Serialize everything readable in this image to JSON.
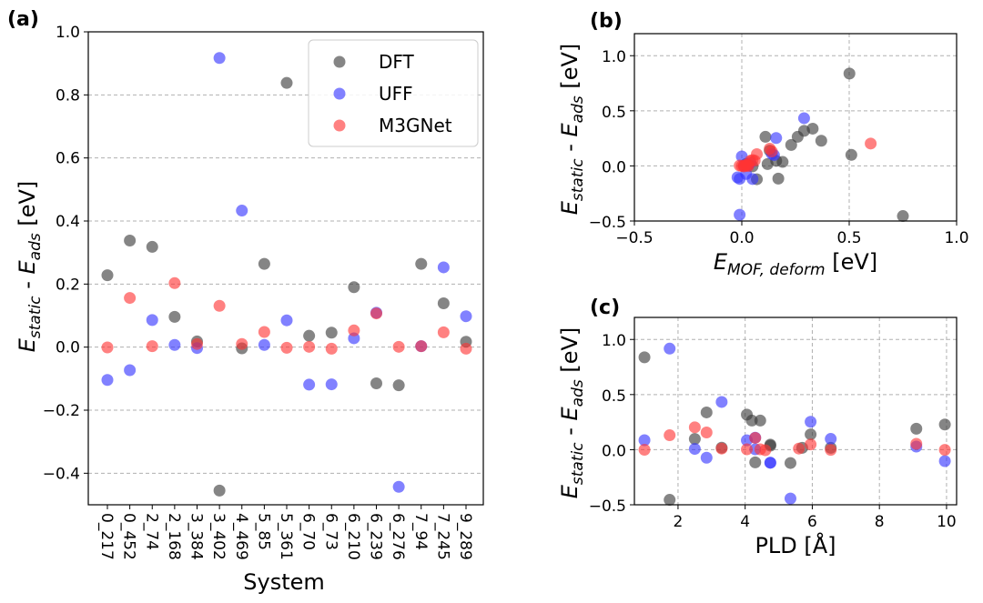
{
  "chart_data": [
    {
      "type": "scatter",
      "panel": "(a)",
      "xlabel": "System",
      "ylabel": "E_static - E_ads [eV]",
      "ylim": [
        -0.5,
        1.0
      ],
      "yticks": [
        -0.4,
        -0.2,
        0.0,
        0.2,
        0.4,
        0.6,
        0.8,
        1.0
      ],
      "ytick_labels": [
        "−0.4",
        "−0.2",
        "0.0",
        "0.2",
        "0.4",
        "0.6",
        "0.8",
        "1.0"
      ],
      "grid": "horizontal dashed",
      "legend_position": "top-right",
      "categories": [
        "0_217",
        "0_452",
        "2_74",
        "2_168",
        "3_384",
        "3_402",
        "4_469",
        "5_85",
        "5_361",
        "6_70",
        "6_73",
        "6_210",
        "6_239",
        "6_276",
        "7_94",
        "7_245",
        "9_289"
      ],
      "series": [
        {
          "name": "DFT",
          "color": "#3a3a3a",
          "values": [
            0.228,
            0.338,
            0.318,
            0.096,
            0.018,
            -0.455,
            -0.004,
            0.264,
            0.838,
            0.036,
            0.046,
            0.19,
            -0.115,
            -0.121,
            0.264,
            0.139,
            0.017
          ]
        },
        {
          "name": "UFF",
          "color": "#3333ff",
          "values": [
            -0.104,
            -0.073,
            0.086,
            0.007,
            -0.003,
            0.917,
            0.433,
            0.007,
            0.085,
            -0.119,
            -0.118,
            0.028,
            0.109,
            -0.443,
            0.003,
            0.253,
            0.098
          ]
        },
        {
          "name": "M3GNet",
          "color": "#ff3333",
          "values": [
            -0.001,
            0.156,
            0.003,
            0.203,
            0.01,
            0.131,
            0.01,
            0.048,
            -0.002,
            0.001,
            -0.005,
            0.053,
            0.107,
            0.001,
            0.003,
            0.047,
            -0.005
          ]
        }
      ]
    },
    {
      "type": "scatter",
      "panel": "(b)",
      "xlabel": "E_MOF,deform [eV]",
      "ylabel": "E_static - E_ads [eV]",
      "xlim": [
        -0.5,
        1.0
      ],
      "ylim": [
        -0.5,
        1.2
      ],
      "xticks": [
        -0.5,
        0.0,
        0.5,
        1.0
      ],
      "xtick_labels": [
        "−0.5",
        "0.0",
        "0.5",
        "1.0"
      ],
      "yticks": [
        -0.5,
        0.0,
        0.5,
        1.0
      ],
      "ytick_labels": [
        "−0.5",
        "0.0",
        "0.5",
        "1.0"
      ],
      "grid": "dashed",
      "series": [
        {
          "name": "DFT",
          "color": "#3a3a3a",
          "points": [
            [
              0.501,
              0.838
            ],
            [
              0.75,
              -0.455
            ],
            [
              0.51,
              0.1
            ],
            [
              0.37,
              0.228
            ],
            [
              0.33,
              0.338
            ],
            [
              0.29,
              0.318
            ],
            [
              0.26,
              0.264
            ],
            [
              0.23,
              0.19
            ],
            [
              0.17,
              -0.115
            ],
            [
              0.19,
              0.036
            ],
            [
              0.16,
              0.046
            ],
            [
              0.11,
              0.264
            ],
            [
              0.12,
              0.017
            ],
            [
              0.13,
              0.139
            ],
            [
              0.07,
              -0.121
            ],
            [
              0.05,
              -0.004
            ],
            [
              0.02,
              0.018
            ]
          ]
        },
        {
          "name": "UFF",
          "color": "#3333ff",
          "points": [
            [
              -0.01,
              -0.443
            ],
            [
              0.29,
              0.433
            ],
            [
              0.16,
              0.253
            ],
            [
              0.15,
              0.098
            ],
            [
              0.14,
              0.109
            ],
            [
              -0.01,
              -0.118
            ],
            [
              0.0,
              0.086
            ],
            [
              0.01,
              0.003
            ],
            [
              0.03,
              0.007
            ],
            [
              0.04,
              0.028
            ],
            [
              0.05,
              -0.119
            ],
            [
              -0.02,
              -0.104
            ],
            [
              0.02,
              -0.073
            ]
          ]
        },
        {
          "name": "M3GNet",
          "color": "#ff3333",
          "points": [
            [
              0.6,
              0.203
            ],
            [
              0.13,
              0.156
            ],
            [
              0.14,
              0.131
            ],
            [
              0.07,
              0.107
            ],
            [
              0.05,
              0.053
            ],
            [
              0.06,
              0.048
            ],
            [
              0.04,
              0.047
            ],
            [
              0.03,
              0.01
            ],
            [
              0.02,
              0.003
            ],
            [
              0.01,
              0.001
            ],
            [
              0.0,
              -0.001
            ],
            [
              0.01,
              -0.005
            ],
            [
              -0.01,
              0.003
            ],
            [
              0.03,
              -0.002
            ],
            [
              0.02,
              0.01
            ]
          ]
        }
      ]
    },
    {
      "type": "scatter",
      "panel": "(c)",
      "xlabel": "PLD [Å]",
      "ylabel": "E_static - E_ads [eV]",
      "xlim": [
        0.7,
        10.3
      ],
      "ylim": [
        -0.5,
        1.2
      ],
      "xticks": [
        2,
        4,
        6,
        8,
        10
      ],
      "xtick_labels": [
        "2",
        "4",
        "6",
        "8",
        "10"
      ],
      "yticks": [
        -0.5,
        0.0,
        0.5,
        1.0
      ],
      "ytick_labels": [
        "−0.5",
        "0.0",
        "0.5",
        "1.0"
      ],
      "grid": "dashed",
      "series": [
        {
          "name": "DFT",
          "color": "#3a3a3a",
          "points": [
            [
              1.0,
              0.838
            ],
            [
              1.75,
              -0.455
            ],
            [
              2.5,
              0.097
            ],
            [
              2.85,
              0.338
            ],
            [
              3.3,
              0.018
            ],
            [
              4.05,
              0.318
            ],
            [
              4.2,
              0.264
            ],
            [
              4.45,
              0.264
            ],
            [
              4.3,
              -0.115
            ],
            [
              4.75,
              0.046
            ],
            [
              4.75,
              0.036
            ],
            [
              5.35,
              -0.121
            ],
            [
              5.95,
              0.139
            ],
            [
              5.7,
              0.017
            ],
            [
              6.55,
              0.017
            ],
            [
              9.1,
              0.19
            ],
            [
              9.95,
              0.228
            ]
          ]
        },
        {
          "name": "UFF",
          "color": "#3333ff",
          "points": [
            [
              1.0,
              0.086
            ],
            [
              1.75,
              0.917
            ],
            [
              2.5,
              0.007
            ],
            [
              2.85,
              -0.073
            ],
            [
              3.3,
              0.433
            ],
            [
              4.05,
              0.085
            ],
            [
              4.3,
              0.109
            ],
            [
              4.3,
              0.003
            ],
            [
              4.75,
              -0.119
            ],
            [
              4.75,
              -0.118
            ],
            [
              5.35,
              -0.443
            ],
            [
              5.95,
              0.253
            ],
            [
              6.55,
              0.098
            ],
            [
              9.1,
              0.028
            ],
            [
              9.95,
              -0.104
            ]
          ]
        },
        {
          "name": "M3GNet",
          "color": "#ff3333",
          "points": [
            [
              1.0,
              -0.001
            ],
            [
              1.75,
              0.131
            ],
            [
              2.5,
              0.203
            ],
            [
              2.85,
              0.156
            ],
            [
              3.3,
              0.01
            ],
            [
              4.05,
              0.003
            ],
            [
              4.3,
              0.107
            ],
            [
              4.45,
              0.003
            ],
            [
              4.6,
              -0.005
            ],
            [
              5.6,
              0.01
            ],
            [
              5.95,
              0.048
            ],
            [
              6.55,
              -0.002
            ],
            [
              9.1,
              0.053
            ],
            [
              9.95,
              -0.002
            ]
          ]
        }
      ]
    }
  ]
}
